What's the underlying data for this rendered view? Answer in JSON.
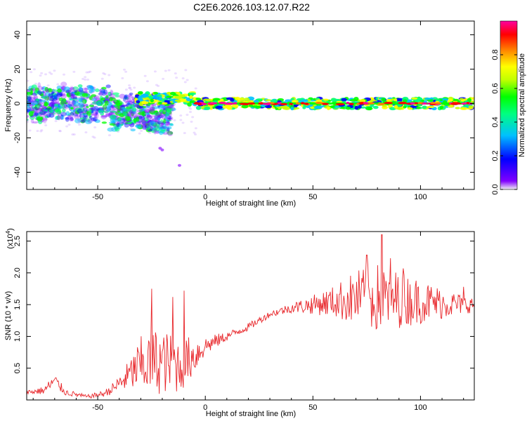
{
  "page_title": "C2E6.2026.103.12.07.R22",
  "chart_data": [
    {
      "type": "heatmap",
      "name": "spectrogram",
      "xlabel": "Height of straight line (km)",
      "ylabel": "Frequency (Hz)",
      "xlim": [
        -83,
        125
      ],
      "ylim": [
        -50,
        48
      ],
      "xticks": [
        -50,
        0,
        50,
        100
      ],
      "yticks": [
        -40,
        -20,
        0,
        20,
        40
      ],
      "xtick_labels": [
        "-50",
        "0",
        "50",
        "100"
      ],
      "ytick_labels": [
        "-40",
        "-20",
        "0",
        "20",
        "40"
      ],
      "centerline_hz": 0,
      "colorbar": {
        "label": "Normalized spectral amplitude",
        "range": [
          0.0,
          1.0
        ],
        "ticks": [
          0.0,
          0.2,
          0.4,
          0.6,
          0.8
        ],
        "tick_labels": [
          "0.0",
          "0.2",
          "0.4",
          "0.6",
          "0.8"
        ],
        "colors": [
          "#f2f2f2",
          "#8000ff",
          "#0000ff",
          "#00c0ff",
          "#00ff80",
          "#00ff00",
          "#c0ff00",
          "#ffff00",
          "#ff8000",
          "#ff0000",
          "#ff00a0"
        ]
      }
    },
    {
      "type": "line",
      "name": "snr",
      "xlabel": "Height of straight line (km)",
      "ylabel": "SNR (10 * v/v)",
      "y_multiplier": "(x10",
      "y_multiplier_exp": "4",
      "y_multiplier_close": ")",
      "xlim": [
        -83,
        125
      ],
      "ylim": [
        0,
        2.65
      ],
      "xticks": [
        -50,
        0,
        50,
        100
      ],
      "yticks": [
        0.5,
        1.0,
        1.5,
        2.0,
        2.5
      ],
      "xtick_labels": [
        "-50",
        "0",
        "50",
        "100"
      ],
      "ytick_labels": [
        "0.5",
        "1.0",
        "1.5",
        "2.0",
        "2.5"
      ],
      "line_color": "#e8262a",
      "envelope": {
        "x": [
          -83,
          -75,
          -70,
          -65,
          -55,
          -47,
          -42,
          -35,
          -30,
          -25,
          -20,
          -12,
          -5,
          0,
          10,
          20,
          30,
          40,
          50,
          60,
          70,
          80,
          90,
          100,
          110,
          120,
          125
        ],
        "base": [
          0.12,
          0.15,
          0.3,
          0.12,
          0.05,
          0.1,
          0.2,
          0.4,
          0.55,
          0.6,
          0.6,
          0.55,
          0.7,
          0.85,
          1.0,
          1.15,
          1.35,
          1.45,
          1.5,
          1.55,
          1.6,
          1.6,
          1.58,
          1.55,
          1.52,
          1.5,
          1.5
        ],
        "amp": [
          0.04,
          0.06,
          0.12,
          0.05,
          0.03,
          0.05,
          0.1,
          0.25,
          0.45,
          0.55,
          0.5,
          0.45,
          0.3,
          0.15,
          0.07,
          0.06,
          0.05,
          0.08,
          0.15,
          0.25,
          0.45,
          0.55,
          0.45,
          0.35,
          0.25,
          0.15,
          0.12
        ]
      },
      "spikes": [
        {
          "x": -25,
          "y": 1.75
        },
        {
          "x": -15,
          "y": 1.62
        },
        {
          "x": -10,
          "y": 1.72
        },
        {
          "x": 75,
          "y": 2.28
        },
        {
          "x": 82,
          "y": 2.6
        },
        {
          "x": 86,
          "y": 2.23
        },
        {
          "x": 92,
          "y": 2.07
        },
        {
          "x": 120,
          "y": 1.78
        }
      ]
    }
  ]
}
